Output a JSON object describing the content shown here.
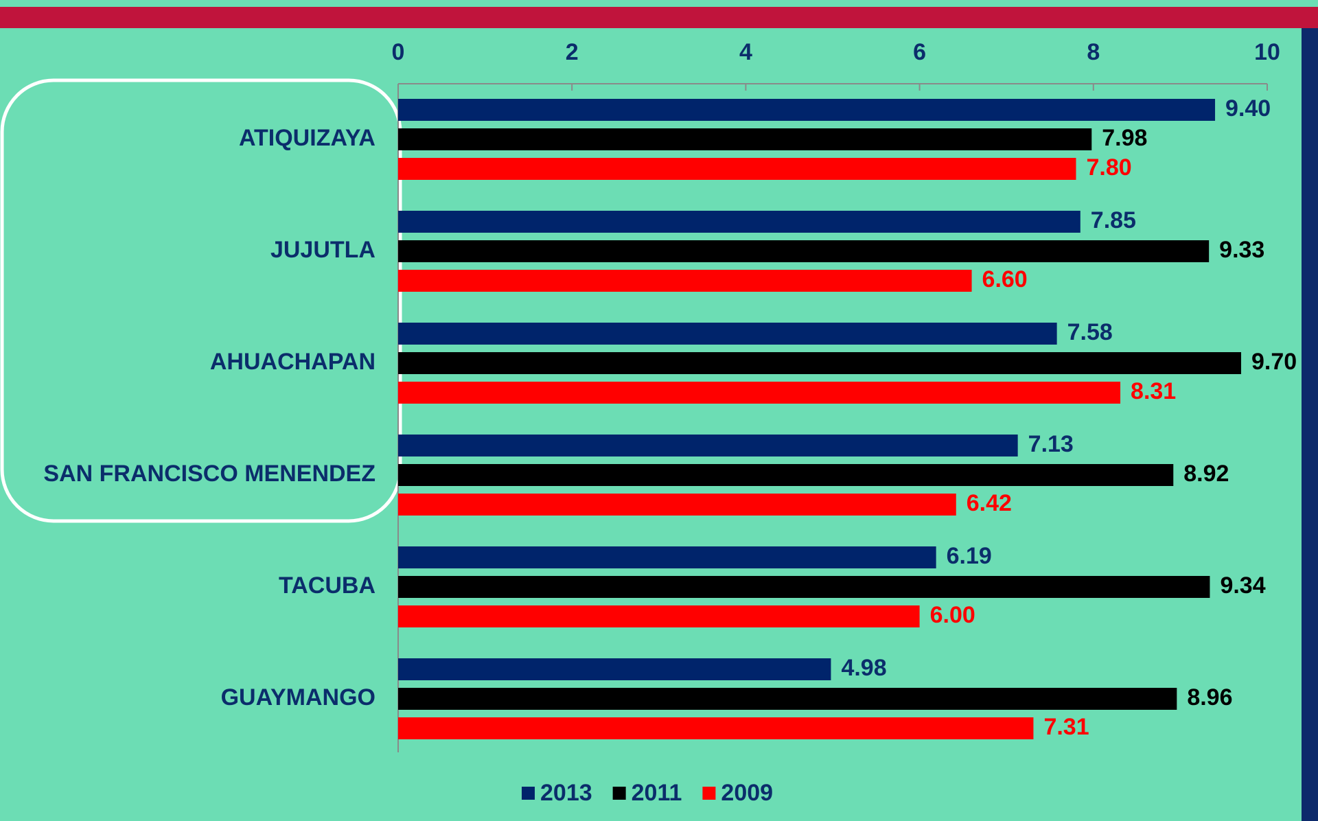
{
  "chart_data": {
    "type": "bar",
    "orientation": "horizontal",
    "categories": [
      "ATIQUIZAYA",
      "JUJUTLA",
      "AHUACHAPAN",
      "SAN FRANCISCO MENENDEZ",
      "TACUBA",
      "GUAYMANGO"
    ],
    "series": [
      {
        "name": "2013",
        "color": "#00246b",
        "label_color": "#0b2d6b",
        "values": [
          9.4,
          7.85,
          7.58,
          7.13,
          6.19,
          4.98
        ],
        "value_labels": [
          "9.40",
          "7.85",
          "7.58",
          "7.13",
          "6.19",
          "4.98"
        ]
      },
      {
        "name": "2011",
        "color": "#000000",
        "label_color": "#000000",
        "values": [
          7.98,
          9.33,
          9.7,
          8.92,
          9.34,
          8.96
        ],
        "value_labels": [
          "7.98",
          "9.33",
          "9.70",
          "8.92",
          "9.34",
          "8.96"
        ]
      },
      {
        "name": "2009",
        "color": "#ff0000",
        "label_color": "#ff0000",
        "values": [
          7.8,
          6.6,
          8.31,
          6.42,
          6.0,
          7.31
        ],
        "value_labels": [
          "7.80",
          "6.60",
          "8.31",
          "6.42",
          "6.00",
          "7.31"
        ]
      }
    ],
    "xlim": [
      0,
      10
    ],
    "xticks": [
      0,
      2,
      4,
      6,
      8,
      10
    ],
    "legend": "bottom"
  }
}
